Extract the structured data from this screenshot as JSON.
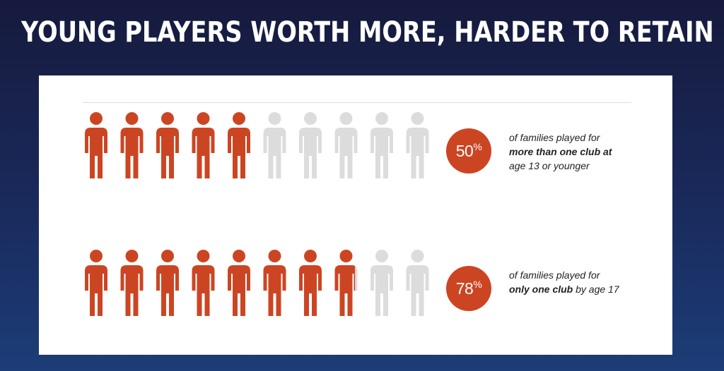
{
  "slide": {
    "title": "YOUNG PLAYERS WORTH MORE, HARDER TO RETAIN"
  },
  "colors": {
    "filled": "#cc4523",
    "empty": "#dcdcdc",
    "background_top": "#161a3d",
    "background_bottom": "#1c3d78"
  },
  "icon": "person-icon",
  "chart_data": {
    "type": "pictogram",
    "icons_per_row": 10,
    "rows": [
      {
        "value": 50,
        "filled_icons": 5,
        "percent_number": "50",
        "percent_sign": "%",
        "text_lines": [
          [
            {
              "text": "of families played for",
              "bold": false
            }
          ],
          [
            {
              "text": "more than one club at",
              "bold": true
            }
          ],
          [
            {
              "text": "age 13 or younger",
              "bold": false
            }
          ]
        ]
      },
      {
        "value": 78,
        "filled_icons": 7.8,
        "percent_number": "78",
        "percent_sign": "%",
        "text_lines": [
          [
            {
              "text": "of families played for",
              "bold": false
            }
          ],
          [
            {
              "text": "only one club",
              "bold": true
            },
            {
              "text": " by age 17",
              "bold": false
            }
          ]
        ]
      }
    ]
  }
}
